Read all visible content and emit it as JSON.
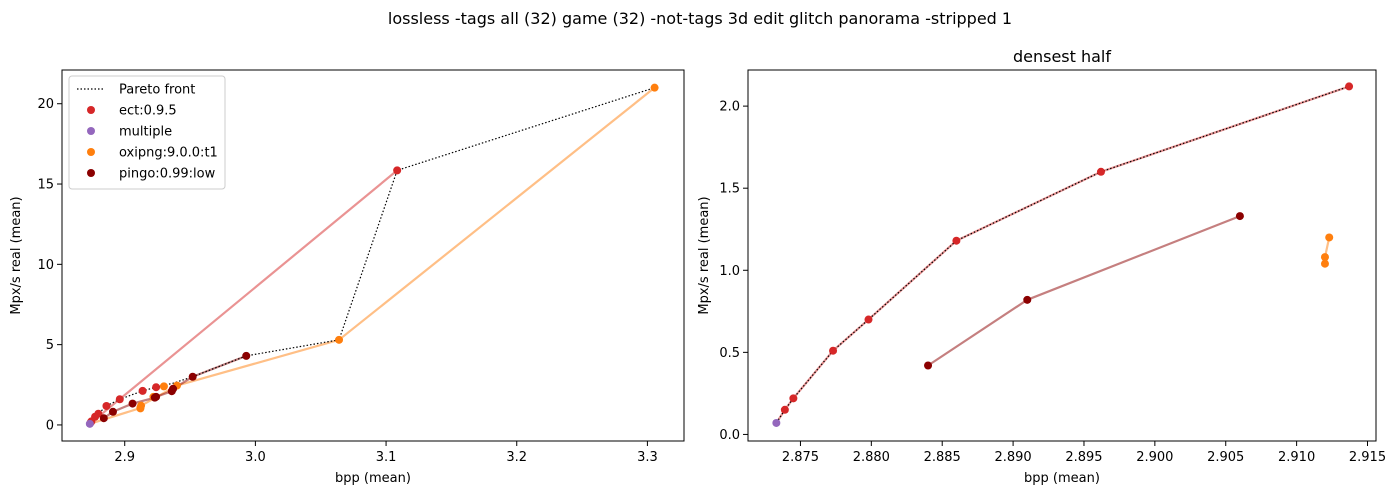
{
  "figure": {
    "suptitle": "lossless -tags all (32) game (32) -not-tags 3d edit glitch panorama -stripped 1"
  },
  "chart_data": [
    {
      "type": "scatter",
      "title": "",
      "xlabel": "bpp (mean)",
      "ylabel": "Mpx/s real (mean)",
      "xlim": [
        2.852,
        3.328
      ],
      "ylim": [
        -1.0,
        22.1
      ],
      "xticks": [
        2.9,
        3.0,
        3.1,
        3.2,
        3.3
      ],
      "xtick_labels": [
        "2.9",
        "3.0",
        "3.1",
        "3.2",
        "3.3"
      ],
      "yticks": [
        0,
        5,
        10,
        15,
        20
      ],
      "ytick_labels": [
        "0",
        "5",
        "10",
        "15",
        "20"
      ],
      "grid": false,
      "legend": {
        "placement": "top-left",
        "entries": [
          {
            "label": "Pareto front",
            "kind": "line",
            "color": "#000000"
          },
          {
            "label": "ect:0.9.5",
            "kind": "marker",
            "color": "#d62728"
          },
          {
            "label": "multiple",
            "kind": "marker",
            "color": "#9467bd"
          },
          {
            "label": "oxipng:9.0.0:t1",
            "kind": "marker",
            "color": "#ff7f0e"
          },
          {
            "label": "pingo:0.99:low",
            "kind": "marker",
            "color": "#8b0000"
          }
        ]
      },
      "lines": [
        {
          "name": "ect:0.9.5",
          "color": "#d62728",
          "alpha": 0.5,
          "x": [
            2.8733,
            3.1085
          ],
          "y": [
            0.07,
            15.85
          ]
        },
        {
          "name": "oxipng:9.0.0:t1",
          "color": "#ff7f0e",
          "alpha": 0.5,
          "x": [
            2.8733,
            2.912,
            2.9125,
            2.94,
            3.064,
            3.3055
          ],
          "y": [
            0.07,
            1.05,
            1.2,
            2.45,
            5.3,
            21.0
          ]
        },
        {
          "name": "pingo:0.99:low",
          "color": "#8b0000",
          "alpha": 0.5,
          "x": [
            2.884,
            2.891,
            2.906,
            2.923,
            2.924,
            2.936,
            2.937,
            2.952,
            2.993
          ],
          "y": [
            0.42,
            0.82,
            1.33,
            1.7,
            1.75,
            2.1,
            2.25,
            3.0,
            4.3
          ]
        }
      ],
      "pareto_front": {
        "x": [
          2.8733,
          2.8739,
          2.8745,
          2.8773,
          2.8798,
          2.886,
          2.8962,
          2.9137,
          2.924,
          2.937,
          2.952,
          2.993,
          3.064,
          3.1085,
          3.3055
        ],
        "y": [
          0.07,
          0.15,
          0.22,
          0.51,
          0.7,
          1.18,
          1.6,
          2.12,
          2.35,
          2.6,
          3.0,
          4.3,
          5.3,
          15.85,
          21.0
        ]
      },
      "series": [
        {
          "name": "ect:0.9.5",
          "color": "#d62728",
          "x": [
            2.8739,
            2.8745,
            2.8773,
            2.8798,
            2.886,
            2.8962,
            2.9137,
            2.924,
            3.1085
          ],
          "y": [
            0.15,
            0.22,
            0.51,
            0.7,
            1.18,
            1.6,
            2.12,
            2.35,
            15.85
          ]
        },
        {
          "name": "multiple",
          "color": "#9467bd",
          "x": [
            2.8733
          ],
          "y": [
            0.07
          ]
        },
        {
          "name": "oxipng:9.0.0:t1",
          "color": "#ff7f0e",
          "x": [
            2.912,
            2.912,
            2.9125,
            2.922,
            2.93,
            2.94,
            3.064,
            3.3055
          ],
          "y": [
            1.03,
            1.08,
            1.2,
            1.75,
            2.4,
            2.45,
            5.3,
            21.0
          ]
        },
        {
          "name": "pingo:0.99:low",
          "color": "#8b0000",
          "x": [
            2.884,
            2.891,
            2.906,
            2.923,
            2.924,
            2.936,
            2.937,
            2.952,
            2.993
          ],
          "y": [
            0.42,
            0.82,
            1.33,
            1.7,
            1.75,
            2.1,
            2.25,
            3.0,
            4.3
          ]
        }
      ]
    },
    {
      "type": "scatter",
      "title": "densest half",
      "xlabel": "bpp (mean)",
      "ylabel": "Mpx/s real (mean)",
      "xlim": [
        2.8713,
        2.9156
      ],
      "ylim": [
        -0.04,
        2.22
      ],
      "xticks": [
        2.875,
        2.88,
        2.885,
        2.89,
        2.895,
        2.9,
        2.905,
        2.91,
        2.915
      ],
      "xtick_labels": [
        "2.875",
        "2.880",
        "2.885",
        "2.890",
        "2.895",
        "2.900",
        "2.905",
        "2.910",
        "2.915"
      ],
      "yticks": [
        0,
        0.5,
        1.0,
        1.5,
        2.0
      ],
      "ytick_labels": [
        "0.0",
        "0.5",
        "1.0",
        "1.5",
        "2.0"
      ],
      "grid": false,
      "lines": [
        {
          "name": "ect:0.9.5",
          "color": "#d62728",
          "alpha": 0.5,
          "x": [
            2.8733,
            2.8739,
            2.8745,
            2.8773,
            2.8798,
            2.886,
            2.8962,
            2.9137
          ],
          "y": [
            0.07,
            0.15,
            0.22,
            0.51,
            0.7,
            1.18,
            1.6,
            2.12
          ]
        },
        {
          "name": "pingo:0.99:low",
          "color": "#8b0000",
          "alpha": 0.5,
          "x": [
            2.884,
            2.891,
            2.906
          ],
          "y": [
            0.42,
            0.82,
            1.33
          ]
        },
        {
          "name": "oxipng:9.0.0:t1",
          "color": "#ff7f0e",
          "alpha": 0.5,
          "x": [
            2.912,
            2.912,
            2.9123
          ],
          "y": [
            1.04,
            1.08,
            1.2
          ]
        }
      ],
      "pareto_front": {
        "x": [
          2.8733,
          2.8739,
          2.8745,
          2.8773,
          2.8798,
          2.886,
          2.8962,
          2.9137
        ],
        "y": [
          0.07,
          0.15,
          0.22,
          0.51,
          0.7,
          1.18,
          1.6,
          2.12
        ]
      },
      "series": [
        {
          "name": "ect:0.9.5",
          "color": "#d62728",
          "x": [
            2.8739,
            2.8745,
            2.8773,
            2.8798,
            2.886,
            2.8962,
            2.9137
          ],
          "y": [
            0.15,
            0.22,
            0.51,
            0.7,
            1.18,
            1.6,
            2.12
          ]
        },
        {
          "name": "multiple",
          "color": "#9467bd",
          "x": [
            2.8733
          ],
          "y": [
            0.07
          ]
        },
        {
          "name": "oxipng:9.0.0:t1",
          "color": "#ff7f0e",
          "x": [
            2.912,
            2.912,
            2.9123
          ],
          "y": [
            1.04,
            1.08,
            1.2
          ]
        },
        {
          "name": "pingo:0.99:low",
          "color": "#8b0000",
          "x": [
            2.884,
            2.891,
            2.906
          ],
          "y": [
            0.42,
            0.82,
            1.33
          ]
        }
      ]
    }
  ]
}
